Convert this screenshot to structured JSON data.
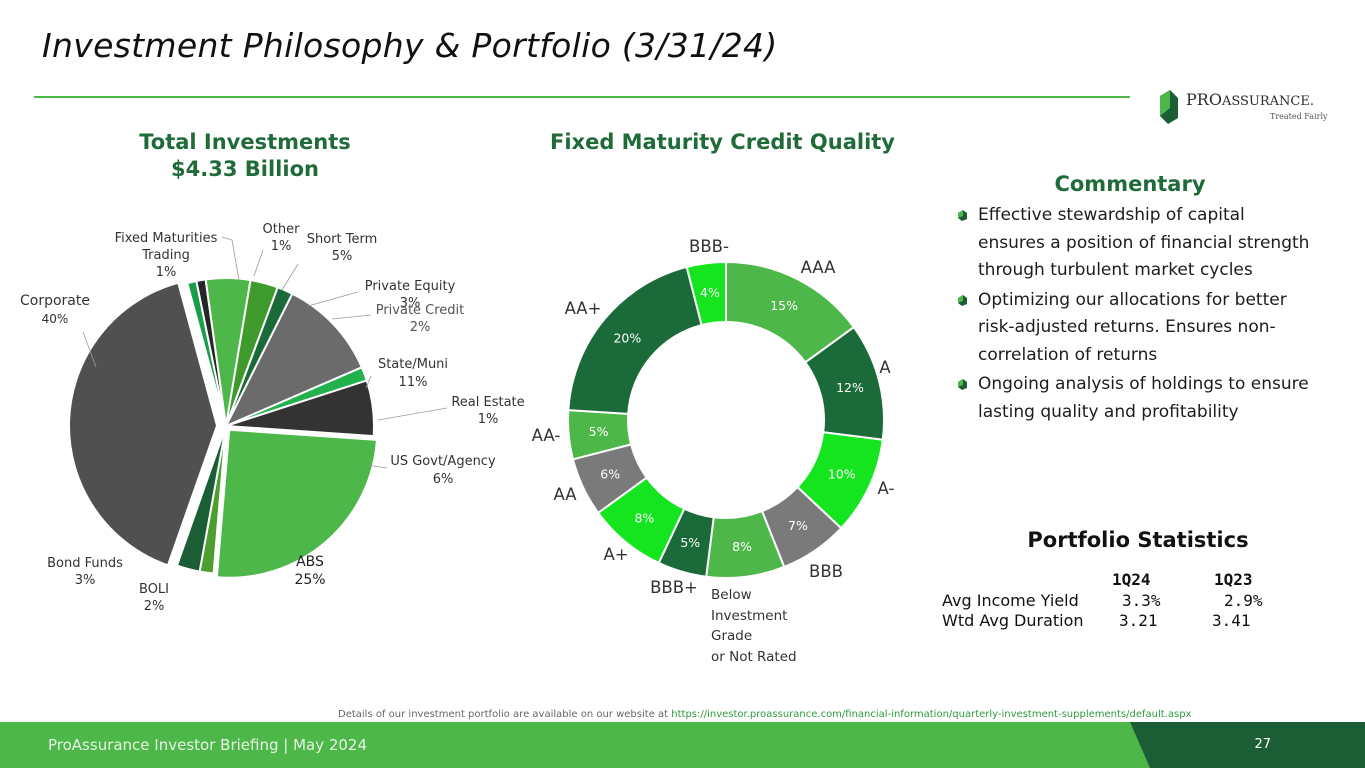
{
  "title": "Investment Philosophy & Portfolio (3/31/24)",
  "logo": {
    "word_pro": "PRO",
    "word_assurance": "ASSURANCE.",
    "tagline": "Treated Fairly"
  },
  "colors": {
    "accent_green": "#4db849",
    "dark_green": "#1b5e35",
    "heading_green": "#1f6b3a"
  },
  "chart_data": [
    {
      "type": "pie",
      "title": "Total Investments",
      "subtitle": "$4.33 Billion",
      "slices": [
        {
          "label": "Fixed Maturities Trading",
          "value": 1,
          "pct": "1%",
          "color": "#1a9e4b"
        },
        {
          "label": "Other",
          "value": 1,
          "pct": "1%",
          "color": "#262626"
        },
        {
          "label": "Short Term",
          "value": 4.8,
          "pct": "5%",
          "color": "#4db849"
        },
        {
          "label": "Private Equity",
          "value": 3,
          "pct": "3%",
          "color": "#3f9a2c"
        },
        {
          "label": "Private Credit",
          "value": 1.7,
          "pct": "2%",
          "color": "#1b6b3a"
        },
        {
          "label": "State/Muni",
          "value": 11,
          "pct": "11%",
          "color": "#6b6b6b"
        },
        {
          "label": "Real Estate",
          "value": 1.5,
          "pct": "1%",
          "color": "#22b14c"
        },
        {
          "label": "US Govt/Agency",
          "value": 6,
          "pct": "6%",
          "color": "#333333"
        },
        {
          "label": "ABS",
          "value": 25,
          "pct": "25%",
          "color": "#4db849"
        },
        {
          "label": "BOLI",
          "value": 1.5,
          "pct": "2%",
          "color": "#4c9e2e"
        },
        {
          "label": "Bond Funds",
          "value": 2.5,
          "pct": "3%",
          "color": "#1b5e35"
        },
        {
          "label": "Corporate",
          "value": 40,
          "pct": "40%",
          "color": "#505050"
        }
      ]
    },
    {
      "type": "pie",
      "title": "Fixed Maturity Credit Quality",
      "slices": [
        {
          "label": "AAA",
          "value": 15,
          "pct": "15%",
          "color": "#4db849"
        },
        {
          "label": "A",
          "value": 12,
          "pct": "12%",
          "color": "#1b6b3a"
        },
        {
          "label": "A-",
          "value": 10,
          "pct": "10%",
          "color": "#14e51f"
        },
        {
          "label": "BBB",
          "value": 7,
          "pct": "7%",
          "color": "#7a7a7a"
        },
        {
          "label": "Below Investment Grade or Not Rated",
          "value": 8,
          "pct": "8%",
          "color": "#4db849"
        },
        {
          "label": "BBB+",
          "value": 5,
          "pct": "5%",
          "color": "#1b6b3a"
        },
        {
          "label": "A+",
          "value": 8,
          "pct": "8%",
          "color": "#14e51f"
        },
        {
          "label": "AA",
          "value": 6,
          "pct": "6%",
          "color": "#7a7a7a"
        },
        {
          "label": "AA-",
          "value": 5,
          "pct": "5%",
          "color": "#4db849"
        },
        {
          "label": "AA+",
          "value": 20,
          "pct": "20%",
          "color": "#1b6b3a"
        },
        {
          "label": "BBB-",
          "value": 4,
          "pct": "4%",
          "color": "#14e51f"
        }
      ]
    }
  ],
  "labels": {
    "total_investments": [
      "Fixed Maturities",
      "Trading",
      "1%",
      "Other",
      "1%",
      "Short Term",
      "5%",
      "Private Equity",
      "3%",
      "Private Credit",
      "2%",
      "State/Muni",
      "11%",
      "Real Estate",
      "1%",
      "US Govt/Agency",
      "6%",
      "ABS",
      "25%",
      "BOLI",
      "2%",
      "Bond Funds",
      "3%",
      "Corporate",
      "40%"
    ],
    "credit_quality": [
      "BBB-",
      "AAA",
      "A",
      "A-",
      "BBB",
      "Below",
      "Investment",
      "Grade",
      "or Not Rated",
      "BBB+",
      "A+",
      "AA",
      "AA-",
      "AA+"
    ]
  },
  "commentary": {
    "title": "Commentary",
    "bullets": [
      "Effective stewardship of capital ensures a position of financial strength through turbulent market cycles",
      "Optimizing our allocations for better risk-adjusted returns. Ensures non-correlation of returns",
      "Ongoing analysis of holdings to ensure lasting quality and profitability"
    ]
  },
  "stats": {
    "title": "Portfolio Statistics",
    "col1": "1Q24",
    "col2": "1Q23",
    "rows": [
      {
        "label": "Avg Income Yield",
        "v1": "3.3%",
        "v2": "2.9%"
      },
      {
        "label": "Wtd Avg Duration",
        "v1": "3.21",
        "v2": "3.41"
      }
    ]
  },
  "footnote": {
    "text": "Details of our investment portfolio are available on our website at",
    "link": "https://investor.proassurance.com/financial-information/quarterly-investment-supplements/default.aspx"
  },
  "footer": {
    "text": "ProAssurance Investor Briefing | May 2024",
    "page": "27"
  }
}
